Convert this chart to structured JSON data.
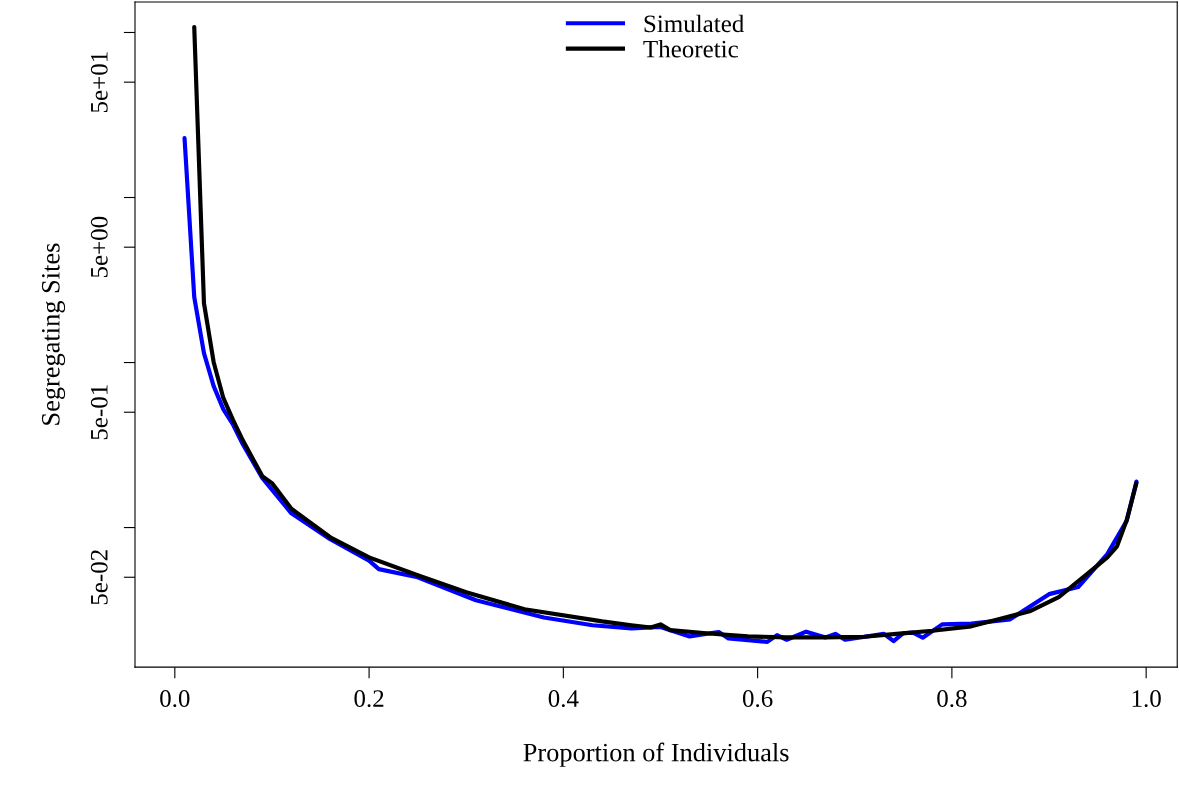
{
  "chart_data": {
    "type": "line",
    "xlabel": "Proportion of Individuals",
    "ylabel": "Segregating Sites",
    "log": "y",
    "legend": "top",
    "grid": false,
    "marker": "none",
    "line_style": "solid",
    "xlim": [
      -0.041,
      1.032
    ],
    "xticks": [
      {
        "value": 0,
        "label": "0.0"
      },
      {
        "value": 0.2,
        "label": "0.2"
      },
      {
        "value": 0.4,
        "label": "0.4"
      },
      {
        "value": 0.6,
        "label": "0.6"
      },
      {
        "value": 0.8,
        "label": "0.8"
      },
      {
        "value": 1,
        "label": "1.0"
      }
    ],
    "ylim": [
      0.01426,
      153
    ],
    "yticks": [
      {
        "value": 100,
        "label": null
      },
      {
        "value": 50,
        "label": "5e+01"
      },
      {
        "value": 10,
        "label": null
      },
      {
        "value": 5,
        "label": "5e+00"
      },
      {
        "value": 1,
        "label": null
      },
      {
        "value": 0.5,
        "label": "5e-01"
      },
      {
        "value": 0.1,
        "label": null
      },
      {
        "value": 0.05,
        "label": "5e-02"
      }
    ],
    "series": [
      {
        "name": "Simulated",
        "color": "#0000ff",
        "x": [
          0.01,
          0.02,
          0.03,
          0.04,
          0.05,
          0.06,
          0.07,
          0.09,
          0.12,
          0.16,
          0.2,
          0.21,
          0.25,
          0.31,
          0.38,
          0.43,
          0.47,
          0.5,
          0.53,
          0.56,
          0.57,
          0.59,
          0.61,
          0.62,
          0.63,
          0.65,
          0.67,
          0.68,
          0.69,
          0.73,
          0.74,
          0.75,
          0.76,
          0.77,
          0.79,
          0.82,
          0.86,
          0.9,
          0.93,
          0.96,
          0.98,
          0.99
        ],
        "values": [
          22.9,
          2.49,
          1.14,
          0.72,
          0.52,
          0.42,
          0.32,
          0.2,
          0.122,
          0.085,
          0.063,
          0.056,
          0.05,
          0.0363,
          0.0285,
          0.0256,
          0.0245,
          0.025,
          0.0219,
          0.0233,
          0.0213,
          0.0208,
          0.0203,
          0.0223,
          0.0209,
          0.0234,
          0.0216,
          0.0227,
          0.0209,
          0.0227,
          0.0205,
          0.0229,
          0.0231,
          0.0215,
          0.0259,
          0.0262,
          0.0278,
          0.0395,
          0.0436,
          0.069,
          0.11,
          0.19
        ]
      },
      {
        "name": "Theoretic",
        "color": "#000000",
        "x": [
          0.02,
          0.03,
          0.04,
          0.05,
          0.06,
          0.07,
          0.08,
          0.09,
          0.1,
          0.12,
          0.16,
          0.2,
          0.25,
          0.3,
          0.36,
          0.44,
          0.47,
          0.49,
          0.5,
          0.51,
          0.55,
          0.59,
          0.63,
          0.67,
          0.71,
          0.74,
          0.78,
          0.82,
          0.85,
          0.88,
          0.91,
          0.94,
          0.96,
          0.97,
          0.98,
          0.99
        ],
        "values": [
          107.7,
          2.29,
          1.005,
          0.608,
          0.448,
          0.338,
          0.263,
          0.205,
          0.186,
          0.13,
          0.0873,
          0.066,
          0.0514,
          0.0406,
          0.032,
          0.027,
          0.0256,
          0.0248,
          0.0259,
          0.0239,
          0.0228,
          0.0219,
          0.0216,
          0.0216,
          0.0218,
          0.0226,
          0.0237,
          0.0252,
          0.028,
          0.0311,
          0.0379,
          0.0528,
          0.066,
          0.077,
          0.111,
          0.186
        ]
      }
    ]
  }
}
